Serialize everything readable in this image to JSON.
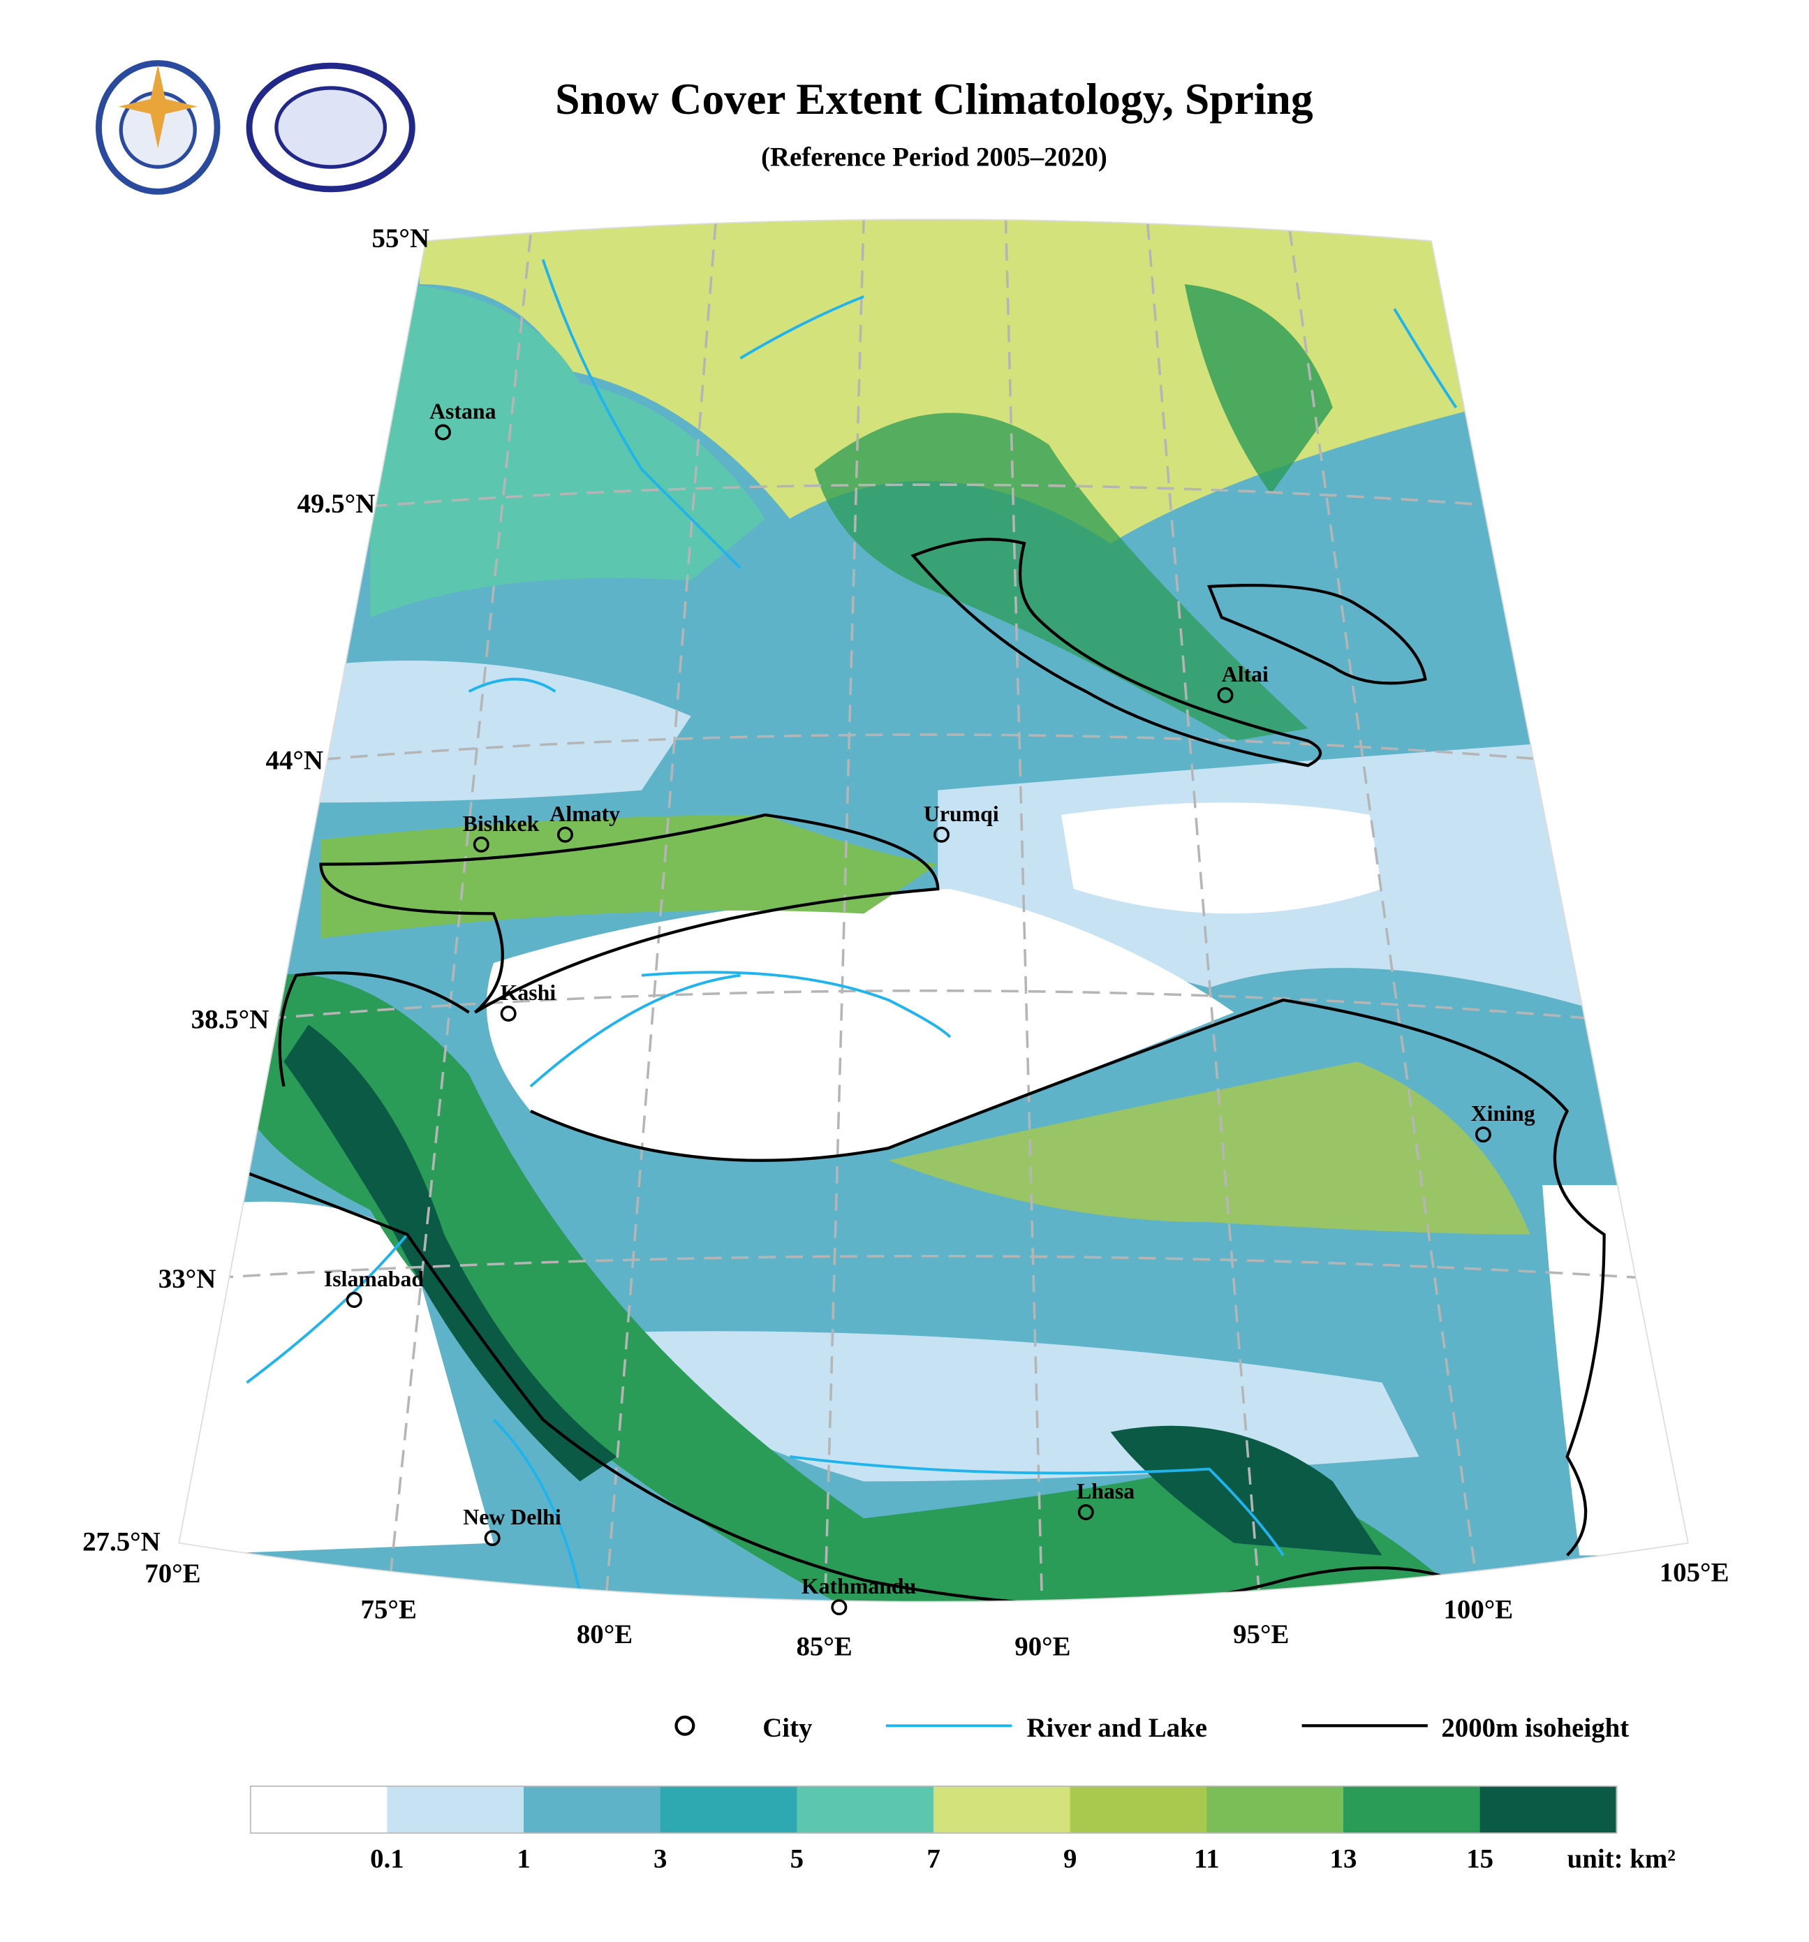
{
  "title": "Snow Cover Extent Climatology, Spring",
  "subtitle": "(Reference Period 2005–2020)",
  "latitude_labels": [
    "55°N",
    "49.5°N",
    "44°N",
    "38.5°N",
    "33°N",
    "27.5°N"
  ],
  "longitude_labels": [
    "70°E",
    "75°E",
    "80°E",
    "85°E",
    "90°E",
    "95°E",
    "100°E",
    "105°E"
  ],
  "cities": [
    "Astana",
    "Bishkek",
    "Almaty",
    "Urumqi",
    "Altai",
    "Kashi",
    "Xining",
    "Islamabad",
    "Lhasa",
    "New Delhi",
    "Kathmandu"
  ],
  "legend": [
    "City",
    "River and Lake",
    "2000m isoheight"
  ],
  "colorbar": {
    "colors": [
      "#ffffff",
      "#c6e2f3",
      "#5fb3c9",
      "#2fa9b1",
      "#5cc7ae",
      "#d3e27a",
      "#a8c94e",
      "#7bbe57",
      "#2b9c57",
      "#0b5a45"
    ],
    "ticks": [
      0.1,
      1,
      3,
      5,
      7,
      9,
      11,
      13,
      15
    ],
    "unit": "unit: km²"
  }
}
